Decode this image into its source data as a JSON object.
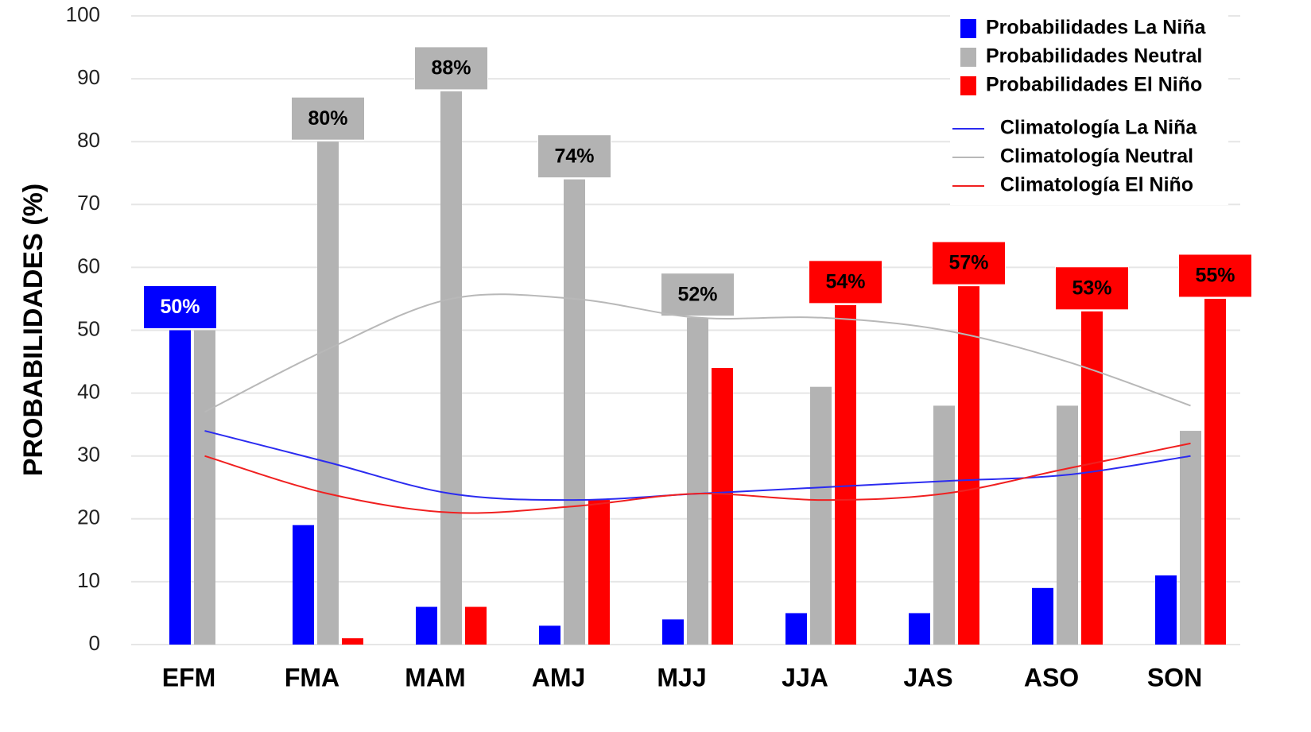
{
  "chart_data": {
    "type": "bar",
    "y_label": "PROBABILIDADES (%)",
    "categories": [
      "EFM",
      "FMA",
      "MAM",
      "AMJ",
      "MJJ",
      "JJA",
      "JAS",
      "ASO",
      "SON"
    ],
    "series": [
      {
        "name": "Probabilidades La Niña",
        "type": "bar",
        "color": "#0000ff",
        "values": [
          50,
          19,
          6,
          3,
          4,
          5,
          5,
          9,
          11
        ],
        "value_labels": [
          "50%",
          null,
          null,
          null,
          null,
          null,
          null,
          null,
          null
        ]
      },
      {
        "name": "Probabilidades Neutral",
        "type": "bar",
        "color": "#b3b3b3",
        "values": [
          50,
          80,
          88,
          74,
          52,
          41,
          38,
          38,
          34
        ],
        "value_labels": [
          null,
          "80%",
          "88%",
          "74%",
          "52%",
          null,
          null,
          null,
          null
        ]
      },
      {
        "name": "Probabilidades El Niño",
        "type": "bar",
        "color": "#ff0000",
        "values": [
          0,
          1,
          6,
          23,
          44,
          54,
          57,
          53,
          55
        ],
        "value_labels": [
          null,
          null,
          null,
          null,
          null,
          "54%",
          "57%",
          "53%",
          "55%"
        ]
      },
      {
        "name": "Climatología  La Niña",
        "type": "line",
        "color": "#2b2bf0",
        "values": [
          34,
          29,
          24,
          23,
          24,
          25,
          26,
          27,
          30
        ]
      },
      {
        "name": "Climatología  Neutral",
        "type": "line",
        "color": "#b8b8b8",
        "values": [
          37,
          47,
          55,
          55,
          52,
          52,
          50,
          45,
          38
        ]
      },
      {
        "name": "Climatología  El Niño",
        "type": "line",
        "color": "#f02020",
        "values": [
          30,
          24,
          21,
          22,
          24,
          23,
          24,
          28,
          32
        ]
      }
    ],
    "ylim": [
      0,
      100
    ],
    "yticks": [
      0,
      10,
      20,
      30,
      40,
      50,
      60,
      70,
      80,
      90,
      100
    ],
    "grid": true,
    "legend": "top-right"
  }
}
